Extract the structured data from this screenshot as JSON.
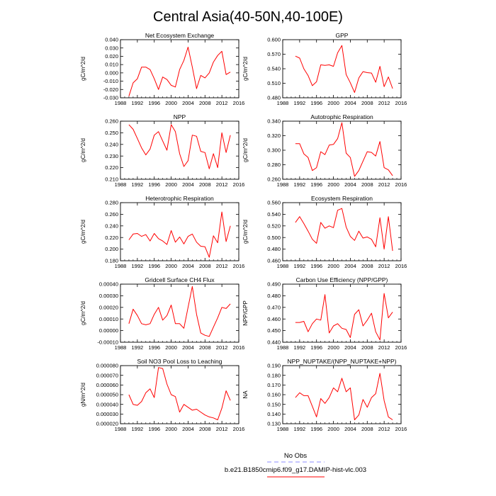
{
  "title": "Central Asia(40-50N,40-100E)",
  "legend": {
    "entries": [
      {
        "label": "No Obs",
        "color": "#8c8cff",
        "dash": true
      },
      {
        "label": "b.e21.B1850cmip6.f09_g17.DAMIP-hist-vlc.003",
        "color": "#ff0000",
        "dash": false
      }
    ]
  },
  "chart_data": [
    {
      "type": "line",
      "title": "Net Ecosystem Exchange",
      "ylabel": "gC/m^2/d",
      "xlim": [
        1988,
        2016
      ],
      "xticks": [
        1988,
        1992,
        1996,
        2000,
        2004,
        2008,
        2012,
        2016
      ],
      "ylim": [
        -0.03,
        0.04
      ],
      "yticks": [
        "-0.030",
        "-0.020",
        "-0.010",
        "0.000",
        "0.010",
        "0.020",
        "0.030",
        "0.040"
      ],
      "series": [
        {
          "color": "#ff0000",
          "x": [
            1990,
            1991,
            1992,
            1993,
            1994,
            1995,
            1996,
            1997,
            1998,
            1999,
            2000,
            2001,
            2002,
            2003,
            2004,
            2005,
            2006,
            2007,
            2008,
            2009,
            2010,
            2011,
            2012,
            2013,
            2014
          ],
          "y": [
            -0.028,
            -0.012,
            -0.007,
            0.007,
            0.007,
            0.004,
            -0.007,
            -0.02,
            -0.005,
            -0.008,
            -0.015,
            -0.017,
            0.004,
            0.015,
            0.031,
            0.007,
            -0.019,
            -0.003,
            -0.006,
            0.0,
            0.013,
            0.021,
            0.026,
            -0.002,
            0.001
          ]
        }
      ]
    },
    {
      "type": "line",
      "title": "GPP",
      "ylabel": "gC/m^2/d",
      "xlim": [
        1988,
        2016
      ],
      "xticks": [
        1988,
        1992,
        1996,
        2000,
        2004,
        2008,
        2012,
        2016
      ],
      "ylim": [
        0.48,
        0.6
      ],
      "yticks": [
        "0.480",
        "0.510",
        "0.540",
        "0.570",
        "0.600"
      ],
      "series": [
        {
          "color": "#ff0000",
          "x": [
            1991,
            1992,
            1993,
            1994,
            1995,
            1996,
            1997,
            1998,
            1999,
            2000,
            2001,
            2002,
            2003,
            2004,
            2005,
            2006,
            2007,
            2008,
            2009,
            2010,
            2011,
            2012,
            2013,
            2014
          ],
          "y": [
            0.566,
            0.562,
            0.54,
            0.526,
            0.505,
            0.513,
            0.548,
            0.547,
            0.548,
            0.545,
            0.573,
            0.588,
            0.528,
            0.511,
            0.491,
            0.521,
            0.534,
            0.532,
            0.531,
            0.512,
            0.545,
            0.503,
            0.523,
            0.499
          ]
        }
      ]
    },
    {
      "type": "line",
      "title": "NPP",
      "ylabel": "gC/m^2/d",
      "xlim": [
        1988,
        2016
      ],
      "xticks": [
        1988,
        1992,
        1996,
        2000,
        2004,
        2008,
        2012,
        2016
      ],
      "ylim": [
        0.21,
        0.26
      ],
      "yticks": [
        "0.210",
        "0.220",
        "0.230",
        "0.240",
        "0.250",
        "0.260"
      ],
      "series": [
        {
          "color": "#ff0000",
          "x": [
            1990,
            1991,
            1992,
            1993,
            1994,
            1995,
            1996,
            1997,
            1998,
            1999,
            2000,
            2001,
            2002,
            2003,
            2004,
            2005,
            2006,
            2007,
            2008,
            2009,
            2010,
            2011,
            2012,
            2013,
            2014
          ],
          "y": [
            0.257,
            0.253,
            0.245,
            0.237,
            0.231,
            0.236,
            0.248,
            0.251,
            0.243,
            0.235,
            0.257,
            0.251,
            0.232,
            0.221,
            0.226,
            0.248,
            0.247,
            0.234,
            0.233,
            0.219,
            0.232,
            0.22,
            0.25,
            0.233,
            0.248
          ]
        }
      ]
    },
    {
      "type": "line",
      "title": "Autotrophic Respiration",
      "ylabel": "gC/m^2/d",
      "xlim": [
        1988,
        2016
      ],
      "xticks": [
        1988,
        1992,
        1996,
        2000,
        2004,
        2008,
        2012,
        2016
      ],
      "ylim": [
        0.26,
        0.34
      ],
      "yticks": [
        "0.260",
        "0.280",
        "0.300",
        "0.320",
        "0.340"
      ],
      "series": [
        {
          "color": "#ff0000",
          "x": [
            1991,
            1992,
            1993,
            1994,
            1995,
            1996,
            1997,
            1998,
            1999,
            2000,
            2001,
            2002,
            2003,
            2004,
            2005,
            2006,
            2007,
            2008,
            2009,
            2010,
            2011,
            2012,
            2013,
            2014
          ],
          "y": [
            0.309,
            0.309,
            0.295,
            0.29,
            0.272,
            0.276,
            0.298,
            0.294,
            0.307,
            0.308,
            0.316,
            0.338,
            0.296,
            0.29,
            0.264,
            0.272,
            0.285,
            0.298,
            0.297,
            0.292,
            0.312,
            0.276,
            0.273,
            0.265
          ]
        }
      ]
    },
    {
      "type": "line",
      "title": "Heterotrophic Respiration",
      "ylabel": "gC/m^2/d",
      "xlim": [
        1988,
        2016
      ],
      "xticks": [
        1988,
        1992,
        1996,
        2000,
        2004,
        2008,
        2012,
        2016
      ],
      "ylim": [
        0.18,
        0.28
      ],
      "yticks": [
        "0.180",
        "0.200",
        "0.220",
        "0.240",
        "0.260",
        "0.280"
      ],
      "series": [
        {
          "color": "#ff0000",
          "x": [
            1990,
            1991,
            1992,
            1993,
            1994,
            1995,
            1996,
            1997,
            1998,
            1999,
            2000,
            2001,
            2002,
            2003,
            2004,
            2005,
            2006,
            2007,
            2008,
            2009,
            2010,
            2011,
            2012,
            2013,
            2014
          ],
          "y": [
            0.216,
            0.226,
            0.227,
            0.222,
            0.225,
            0.214,
            0.227,
            0.218,
            0.214,
            0.208,
            0.232,
            0.212,
            0.221,
            0.209,
            0.222,
            0.226,
            0.212,
            0.205,
            0.204,
            0.186,
            0.223,
            0.211,
            0.264,
            0.213,
            0.24
          ]
        }
      ]
    },
    {
      "type": "line",
      "title": "Ecosystem Respiration",
      "ylabel": "gC/m^2/d",
      "xlim": [
        1988,
        2016
      ],
      "xticks": [
        1988,
        1992,
        1996,
        2000,
        2004,
        2008,
        2012,
        2016
      ],
      "ylim": [
        0.46,
        0.56
      ],
      "yticks": [
        "0.460",
        "0.480",
        "0.500",
        "0.520",
        "0.540",
        "0.560"
      ],
      "series": [
        {
          "color": "#ff0000",
          "x": [
            1991,
            1992,
            1993,
            1994,
            1995,
            1996,
            1997,
            1998,
            1999,
            2000,
            2001,
            2002,
            2003,
            2004,
            2005,
            2006,
            2007,
            2008,
            2009,
            2010,
            2011,
            2012,
            2013,
            2014
          ],
          "y": [
            0.526,
            0.536,
            0.524,
            0.511,
            0.497,
            0.49,
            0.526,
            0.516,
            0.52,
            0.517,
            0.547,
            0.55,
            0.518,
            0.502,
            0.495,
            0.511,
            0.499,
            0.501,
            0.497,
            0.484,
            0.534,
            0.48,
            0.536,
            0.477
          ]
        }
      ]
    },
    {
      "type": "line",
      "title": "Gridcell Surface CH4 Flux",
      "ylabel": "gC/m^2/d",
      "xlim": [
        1988,
        2016
      ],
      "xticks": [
        1988,
        1992,
        1996,
        2000,
        2004,
        2008,
        2012,
        2016
      ],
      "ylim": [
        -0.0001,
        0.0004
      ],
      "yticks": [
        "-0.00010",
        "0.00000",
        "0.00010",
        "0.00020",
        "0.00030",
        "0.00040"
      ],
      "series": [
        {
          "color": "#ff0000",
          "x": [
            1990,
            1991,
            1992,
            1993,
            1994,
            1995,
            1996,
            1997,
            1998,
            1999,
            2000,
            2001,
            2002,
            2003,
            2004,
            2005,
            2006,
            2007,
            2008,
            2009,
            2010,
            2011,
            2012,
            2013,
            2014
          ],
          "y": [
            6e-05,
            0.000185,
            0.00013,
            6e-05,
            5e-05,
            6e-05,
            0.00014,
            0.0002,
            9e-05,
            0.00013,
            0.00022,
            6e-05,
            6e-05,
            2e-05,
            0.0002,
            0.00038,
            0.00014,
            -2e-05,
            -4e-05,
            -5e-05,
            3e-05,
            0.00011,
            0.0002,
            0.00019,
            0.00023
          ]
        }
      ]
    },
    {
      "type": "line",
      "title": "Carbon Use Efficiency (NPP/GPP)",
      "ylabel": "NPP/GPP",
      "xlim": [
        1988,
        2016
      ],
      "xticks": [
        1988,
        1992,
        1996,
        2000,
        2004,
        2008,
        2012,
        2016
      ],
      "ylim": [
        0.44,
        0.49
      ],
      "yticks": [
        "0.440",
        "0.450",
        "0.460",
        "0.470",
        "0.480",
        "0.490"
      ],
      "series": [
        {
          "color": "#ff0000",
          "x": [
            1991,
            1992,
            1993,
            1994,
            1995,
            1996,
            1997,
            1998,
            1999,
            2000,
            2001,
            2002,
            2003,
            2004,
            2005,
            2006,
            2007,
            2008,
            2009,
            2010,
            2011,
            2012,
            2013,
            2014
          ],
          "y": [
            0.457,
            0.457,
            0.458,
            0.449,
            0.456,
            0.46,
            0.459,
            0.481,
            0.448,
            0.454,
            0.456,
            0.452,
            0.451,
            0.444,
            0.464,
            0.468,
            0.454,
            0.459,
            0.465,
            0.449,
            0.442,
            0.482,
            0.461,
            0.466
          ]
        }
      ]
    },
    {
      "type": "line",
      "title": "Soil NO3 Pool Loss to Leaching",
      "ylabel": "gN/m^2/d",
      "xlim": [
        1988,
        2016
      ],
      "xticks": [
        1988,
        1992,
        1996,
        2000,
        2004,
        2008,
        2012,
        2016
      ],
      "ylim": [
        2e-05,
        8e-05
      ],
      "yticks": [
        "0.000020",
        "0.000030",
        "0.000040",
        "0.000050",
        "0.000060",
        "0.000070",
        "0.000080"
      ],
      "series": [
        {
          "color": "#ff0000",
          "x": [
            1990,
            1991,
            1992,
            1993,
            1994,
            1995,
            1996,
            1997,
            1998,
            1999,
            2000,
            2001,
            2002,
            2003,
            2004,
            2005,
            2006,
            2007,
            2008,
            2009,
            2010,
            2011,
            2012,
            2013,
            2014
          ],
          "y": [
            5e-05,
            4e-05,
            3.9e-05,
            4.3e-05,
            5.2e-05,
            5.6e-05,
            4.7e-05,
            7.8e-05,
            7.7e-05,
            6.1e-05,
            5e-05,
            4.8e-05,
            3.2e-05,
            4e-05,
            3.7e-05,
            3.4e-05,
            3.5e-05,
            3.2e-05,
            2.9e-05,
            2.7e-05,
            2.6e-05,
            2.4e-05,
            3.6e-05,
            5.4e-05,
            4.4e-05
          ]
        }
      ]
    },
    {
      "type": "line",
      "title": "NPP_NUPTAKE/(NPP_NUPTAKE+NPP)",
      "ylabel": "NA",
      "xlim": [
        1988,
        2016
      ],
      "xticks": [
        1988,
        1992,
        1996,
        2000,
        2004,
        2008,
        2012,
        2016
      ],
      "ylim": [
        0.13,
        0.19
      ],
      "yticks": [
        "0.130",
        "0.140",
        "0.150",
        "0.160",
        "0.170",
        "0.180",
        "0.190"
      ],
      "series": [
        {
          "color": "#ff0000",
          "x": [
            1991,
            1992,
            1993,
            1994,
            1995,
            1996,
            1997,
            1998,
            1999,
            2000,
            2001,
            2002,
            2003,
            2004,
            2005,
            2006,
            2007,
            2008,
            2009,
            2010,
            2011,
            2012,
            2013,
            2014
          ],
          "y": [
            0.157,
            0.162,
            0.159,
            0.159,
            0.148,
            0.137,
            0.156,
            0.151,
            0.157,
            0.167,
            0.163,
            0.177,
            0.163,
            0.167,
            0.134,
            0.139,
            0.155,
            0.147,
            0.157,
            0.161,
            0.182,
            0.154,
            0.137,
            0.134
          ]
        }
      ]
    }
  ]
}
